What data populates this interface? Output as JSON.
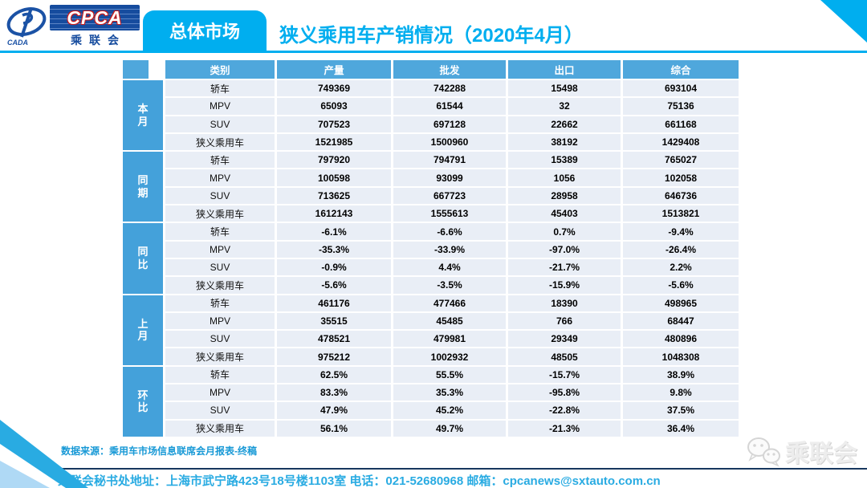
{
  "header": {
    "section_label": "总体市场",
    "title": "狭义乘用车产销情况（2020年4月）",
    "logo": {
      "emblem_text": "CADA",
      "acronym": "CPCA",
      "org_name": "乘联会"
    }
  },
  "chart_data": {
    "type": "table",
    "title": "狭义乘用车产销情况（2020年4月）",
    "columns": [
      "类别",
      "产量",
      "批发",
      "出口",
      "综合"
    ],
    "row_groups": [
      {
        "label": "本月",
        "rows": [
          {
            "category": "轿车",
            "values": [
              "749369",
              "742288",
              "15498",
              "693104"
            ]
          },
          {
            "category": "MPV",
            "values": [
              "65093",
              "61544",
              "32",
              "75136"
            ]
          },
          {
            "category": "SUV",
            "values": [
              "707523",
              "697128",
              "22662",
              "661168"
            ]
          },
          {
            "category": "狭义乘用车",
            "values": [
              "1521985",
              "1500960",
              "38192",
              "1429408"
            ]
          }
        ]
      },
      {
        "label": "同期",
        "rows": [
          {
            "category": "轿车",
            "values": [
              "797920",
              "794791",
              "15389",
              "765027"
            ]
          },
          {
            "category": "MPV",
            "values": [
              "100598",
              "93099",
              "1056",
              "102058"
            ]
          },
          {
            "category": "SUV",
            "values": [
              "713625",
              "667723",
              "28958",
              "646736"
            ]
          },
          {
            "category": "狭义乘用车",
            "values": [
              "1612143",
              "1555613",
              "45403",
              "1513821"
            ]
          }
        ]
      },
      {
        "label": "同比",
        "rows": [
          {
            "category": "轿车",
            "values": [
              "-6.1%",
              "-6.6%",
              "0.7%",
              "-9.4%"
            ]
          },
          {
            "category": "MPV",
            "values": [
              "-35.3%",
              "-33.9%",
              "-97.0%",
              "-26.4%"
            ]
          },
          {
            "category": "SUV",
            "values": [
              "-0.9%",
              "4.4%",
              "-21.7%",
              "2.2%"
            ]
          },
          {
            "category": "狭义乘用车",
            "values": [
              "-5.6%",
              "-3.5%",
              "-15.9%",
              "-5.6%"
            ]
          }
        ]
      },
      {
        "label": "上月",
        "rows": [
          {
            "category": "轿车",
            "values": [
              "461176",
              "477466",
              "18390",
              "498965"
            ]
          },
          {
            "category": "MPV",
            "values": [
              "35515",
              "45485",
              "766",
              "68447"
            ]
          },
          {
            "category": "SUV",
            "values": [
              "478521",
              "479981",
              "29349",
              "480896"
            ]
          },
          {
            "category": "狭义乘用车",
            "values": [
              "975212",
              "1002932",
              "48505",
              "1048308"
            ]
          }
        ]
      },
      {
        "label": "环比",
        "rows": [
          {
            "category": "轿车",
            "values": [
              "62.5%",
              "55.5%",
              "-15.7%",
              "38.9%"
            ]
          },
          {
            "category": "MPV",
            "values": [
              "83.3%",
              "35.3%",
              "-95.8%",
              "9.8%"
            ]
          },
          {
            "category": "SUV",
            "values": [
              "47.9%",
              "45.2%",
              "-22.8%",
              "37.5%"
            ]
          },
          {
            "category": "狭义乘用车",
            "values": [
              "56.1%",
              "49.7%",
              "-21.3%",
              "36.4%"
            ]
          }
        ]
      }
    ],
    "layout": {
      "header_fill": "#4FA7DC",
      "group_fill": "#44A1DA",
      "row_fill": "#E9EEF6"
    }
  },
  "footer": {
    "source_note": "数据来源：乘用车市场信息联席会月报表-终稿",
    "contact": "乘联会秘书处地址：上海市武宁路423号18号楼1103室 电话：021-52680968 邮箱：cpcanews@sxtauto.com.cn",
    "watermark": "乘联会"
  },
  "colors": {
    "accent_cyan": "#00AEEF",
    "table_header_blue": "#4FA7DC",
    "group_cell_blue": "#44A1DA",
    "row_bg": "#E9EEF6",
    "source_text": "#1899D6",
    "contact_text": "#29ABE2",
    "footer_rule": "#17375E",
    "logo_blue": "#164C9E",
    "stripe_light_blue": "#AFD9F5"
  }
}
